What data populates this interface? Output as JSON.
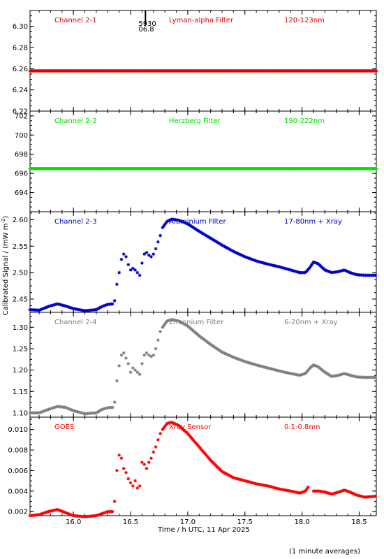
{
  "figure": {
    "xlabel": "Time / h UTC, 11 Apr 2025",
    "ylabel": "Calibrated Signal / (mW m",
    "ylabel_sup": "-2",
    "ylabel_close": ")",
    "footnote": "(1 minute averages)",
    "marker_label_top": "5930",
    "marker_label_bottom": "06.8",
    "marker_x": 16.63
  },
  "chart_data": [
    {
      "type": "scatter",
      "channel": "Channel 2-1",
      "filter": "Lyman-alpha Filter",
      "band": "120-123nm",
      "color": "#e00000",
      "xlim": [
        15.62,
        18.65
      ],
      "ylim": [
        6.22,
        6.315
      ],
      "yticks": [
        6.22,
        6.24,
        6.26,
        6.28,
        6.3
      ],
      "ytick_decimals": 2,
      "xticks": [
        16.0,
        16.5,
        17.0,
        17.5,
        18.0,
        18.5
      ],
      "series": [
        {
          "x": [
            15.62,
            18.65
          ],
          "y": [
            6.258,
            6.258
          ],
          "shape": "flat"
        }
      ]
    },
    {
      "type": "scatter",
      "channel": "Channel 2-2",
      "filter": "Herzberg Filter",
      "band": "190-222nm",
      "color": "#00e000",
      "xlim": [
        15.62,
        18.65
      ],
      "ylim": [
        692.0,
        702.5
      ],
      "yticks": [
        694,
        696,
        698,
        700,
        702
      ],
      "ytick_decimals": 0,
      "xticks": [
        16.0,
        16.5,
        17.0,
        17.5,
        18.0,
        18.5
      ],
      "series": [
        {
          "x": [
            15.62,
            18.65
          ],
          "y": [
            696.5,
            696.5
          ],
          "shape": "flat"
        }
      ]
    },
    {
      "type": "scatter",
      "channel": "Channel 2-3",
      "filter": "Aluminium Filter",
      "band": "17-80nm + Xray",
      "color": "#0000c8",
      "xlim": [
        15.62,
        18.65
      ],
      "ylim": [
        2.425,
        2.615
      ],
      "yticks": [
        2.45,
        2.5,
        2.55,
        2.6
      ],
      "ytick_decimals": 2,
      "xticks": [
        16.0,
        16.5,
        17.0,
        17.5,
        18.0,
        18.5
      ],
      "series": [
        {
          "x": [
            15.62,
            15.7,
            15.78,
            15.86,
            15.93,
            16.0,
            16.1,
            16.2,
            16.25,
            16.3,
            16.35
          ],
          "y": [
            2.43,
            2.429,
            2.436,
            2.441,
            2.437,
            2.432,
            2.428,
            2.43,
            2.436,
            2.44,
            2.441
          ],
          "shape": "curve"
        },
        {
          "x": [
            16.36,
            16.38,
            16.4,
            16.42,
            16.44,
            16.46,
            16.48,
            16.5,
            16.52,
            16.54,
            16.56,
            16.58,
            16.6,
            16.62,
            16.64,
            16.66,
            16.68,
            16.7,
            16.72,
            16.74,
            16.76
          ],
          "y": [
            2.447,
            2.478,
            2.5,
            2.525,
            2.535,
            2.53,
            2.515,
            2.505,
            2.508,
            2.505,
            2.5,
            2.495,
            2.518,
            2.535,
            2.538,
            2.533,
            2.53,
            2.535,
            2.545,
            2.558,
            2.57
          ],
          "shape": "points"
        },
        {
          "x": [
            16.78,
            16.82,
            16.86,
            16.92,
            17.0,
            17.1,
            17.2,
            17.3,
            17.4,
            17.5,
            17.6,
            17.7,
            17.8,
            17.9,
            17.98,
            18.03,
            18.07,
            18.1,
            18.14,
            18.2,
            18.26,
            18.32,
            18.37,
            18.42,
            18.48,
            18.55,
            18.65
          ],
          "y": [
            2.585,
            2.597,
            2.601,
            2.599,
            2.592,
            2.578,
            2.565,
            2.552,
            2.54,
            2.53,
            2.522,
            2.516,
            2.511,
            2.505,
            2.5,
            2.5,
            2.51,
            2.52,
            2.517,
            2.505,
            2.5,
            2.502,
            2.505,
            2.5,
            2.496,
            2.495,
            2.495
          ],
          "shape": "curve"
        }
      ]
    },
    {
      "type": "scatter",
      "channel": "Channel 2-4",
      "filter": "Zirconium Filter",
      "band": "6-20nm + Xray",
      "color": "#808080",
      "xlim": [
        15.62,
        18.65
      ],
      "ylim": [
        1.09,
        1.335
      ],
      "yticks": [
        1.1,
        1.15,
        1.2,
        1.25,
        1.3
      ],
      "ytick_decimals": 2,
      "xticks": [
        16.0,
        16.5,
        17.0,
        17.5,
        18.0,
        18.5
      ],
      "series": [
        {
          "x": [
            15.62,
            15.7,
            15.78,
            15.86,
            15.93,
            16.0,
            16.1,
            16.2,
            16.25,
            16.3,
            16.35
          ],
          "y": [
            1.1,
            1.1,
            1.108,
            1.115,
            1.113,
            1.105,
            1.098,
            1.1,
            1.108,
            1.112,
            1.113
          ],
          "shape": "curve"
        },
        {
          "x": [
            16.36,
            16.38,
            16.4,
            16.42,
            16.44,
            16.46,
            16.48,
            16.5,
            16.52,
            16.54,
            16.56,
            16.58,
            16.6,
            16.62,
            16.64,
            16.66,
            16.68,
            16.7,
            16.72,
            16.74,
            16.76
          ],
          "y": [
            1.125,
            1.175,
            1.21,
            1.235,
            1.24,
            1.228,
            1.215,
            1.195,
            1.205,
            1.2,
            1.195,
            1.19,
            1.215,
            1.235,
            1.24,
            1.235,
            1.232,
            1.235,
            1.25,
            1.27,
            1.29
          ],
          "shape": "points"
        },
        {
          "x": [
            16.78,
            16.82,
            16.86,
            16.92,
            17.0,
            17.1,
            17.2,
            17.3,
            17.4,
            17.5,
            17.6,
            17.7,
            17.8,
            17.9,
            17.98,
            18.03,
            18.07,
            18.1,
            18.14,
            18.2,
            18.26,
            18.32,
            18.37,
            18.42,
            18.48,
            18.55,
            18.65
          ],
          "y": [
            1.3,
            1.315,
            1.318,
            1.315,
            1.303,
            1.28,
            1.26,
            1.242,
            1.23,
            1.22,
            1.212,
            1.205,
            1.198,
            1.192,
            1.188,
            1.192,
            1.205,
            1.212,
            1.208,
            1.195,
            1.185,
            1.188,
            1.192,
            1.188,
            1.184,
            1.183,
            1.183
          ],
          "shape": "curve"
        }
      ]
    },
    {
      "type": "scatter",
      "channel": "GOES",
      "filter": "Xray Sensor",
      "band": "0.1-0.8nm",
      "color": "#ff0000",
      "xlim": [
        15.62,
        18.65
      ],
      "ylim": [
        0.0016,
        0.0112
      ],
      "yticks": [
        0.002,
        0.004,
        0.006,
        0.008,
        0.01
      ],
      "ytick_decimals": 3,
      "xticks": [
        16.0,
        16.5,
        17.0,
        17.5,
        18.0,
        18.5
      ],
      "series": [
        {
          "x": [
            15.62,
            15.7,
            15.78,
            15.86,
            15.93,
            16.0,
            16.1,
            16.2,
            16.25,
            16.3,
            16.35
          ],
          "y": [
            0.0016,
            0.0017,
            0.002,
            0.0022,
            0.0019,
            0.0016,
            0.0015,
            0.0016,
            0.0018,
            0.002,
            0.002
          ],
          "shape": "curve"
        },
        {
          "x": [
            16.36,
            16.38,
            16.4,
            16.42,
            16.44,
            16.46,
            16.48,
            16.5,
            16.52,
            16.54,
            16.56,
            16.58,
            16.6,
            16.62,
            16.64,
            16.66,
            16.68,
            16.7,
            16.72,
            16.74,
            16.76
          ],
          "y": [
            0.003,
            0.006,
            0.0075,
            0.0072,
            0.0062,
            0.0058,
            0.0052,
            0.0048,
            0.0045,
            0.005,
            0.0043,
            0.0045,
            0.0068,
            0.0066,
            0.0062,
            0.0068,
            0.0072,
            0.0078,
            0.0083,
            0.009,
            0.0096
          ],
          "shape": "points"
        },
        {
          "x": [
            16.78,
            16.82,
            16.86,
            16.92,
            17.0,
            17.1,
            17.2,
            17.3,
            17.4,
            17.5,
            17.6,
            17.7,
            17.8,
            17.9,
            17.98,
            18.03,
            18.06
          ],
          "y": [
            0.01,
            0.0106,
            0.0107,
            0.0104,
            0.0096,
            0.0083,
            0.007,
            0.0059,
            0.0053,
            0.005,
            0.0047,
            0.0045,
            0.0042,
            0.004,
            0.0038,
            0.004,
            0.0045
          ],
          "shape": "curve"
        },
        {
          "x": [
            18.1,
            18.15,
            18.2,
            18.26,
            18.32,
            18.37,
            18.42,
            18.48,
            18.55,
            18.65
          ],
          "y": [
            0.004,
            0.004,
            0.0039,
            0.0037,
            0.0039,
            0.0041,
            0.0039,
            0.0036,
            0.0034,
            0.0035
          ],
          "shape": "curve"
        }
      ]
    }
  ]
}
